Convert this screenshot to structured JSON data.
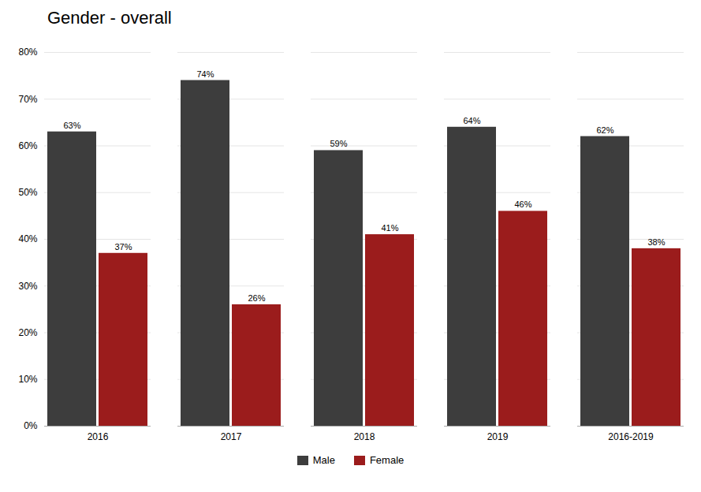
{
  "chart_data": {
    "type": "bar",
    "title": "Gender - overall",
    "categories": [
      "2016",
      "2017",
      "2018",
      "2019",
      "2016-2019"
    ],
    "series": [
      {
        "name": "Male",
        "color": "#3d3d3d",
        "values": [
          63,
          74,
          59,
          64,
          62
        ],
        "value_labels": [
          "63%",
          "74%",
          "59%",
          "64%",
          "62%"
        ]
      },
      {
        "name": "Female",
        "color": "#9B1C1C",
        "values": [
          37,
          26,
          41,
          46,
          38
        ],
        "value_labels": [
          "37%",
          "26%",
          "41%",
          "46%",
          "38%"
        ]
      }
    ],
    "ylim": [
      0,
      80
    ],
    "yticks": [
      {
        "value": 0,
        "label": "0%"
      },
      {
        "value": 10,
        "label": "10%"
      },
      {
        "value": 20,
        "label": "20%"
      },
      {
        "value": 30,
        "label": "30%"
      },
      {
        "value": 40,
        "label": "40%"
      },
      {
        "value": 50,
        "label": "50%"
      },
      {
        "value": 60,
        "label": "60%"
      },
      {
        "value": 70,
        "label": "70%"
      },
      {
        "value": 80,
        "label": "80%"
      }
    ],
    "grid": true,
    "data_labels": true,
    "legend": "bottom"
  }
}
